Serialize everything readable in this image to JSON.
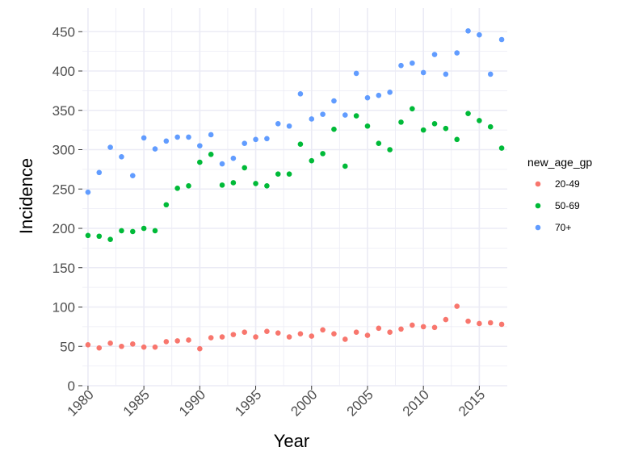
{
  "chart_data": {
    "type": "scatter",
    "title": "",
    "xlabel": "Year",
    "ylabel": "Incidence",
    "xlim": [
      1979.5,
      2017.5
    ],
    "ylim": [
      0,
      480
    ],
    "xticks": [
      "1980",
      "1985",
      "1990",
      "1995",
      "2000",
      "2005",
      "2010",
      "2015"
    ],
    "yticks": [
      "0",
      "50",
      "100",
      "150",
      "200",
      "250",
      "300",
      "350",
      "400",
      "450"
    ],
    "grid": true,
    "legend": {
      "title": "new_age_gp",
      "position": "right"
    },
    "series": [
      {
        "name": "20-49",
        "color": "#f8766d",
        "x": [
          1980,
          1981,
          1982,
          1983,
          1984,
          1985,
          1986,
          1987,
          1988,
          1989,
          1990,
          1991,
          1992,
          1993,
          1994,
          1995,
          1996,
          1997,
          1998,
          1999,
          2000,
          2001,
          2002,
          2003,
          2004,
          2005,
          2006,
          2007,
          2008,
          2009,
          2010,
          2011,
          2012,
          2013,
          2014,
          2015,
          2016,
          2017
        ],
        "y": [
          52,
          48,
          54,
          50,
          53,
          49,
          49,
          56,
          57,
          58,
          47,
          61,
          62,
          65,
          68,
          62,
          69,
          67,
          62,
          66,
          63,
          71,
          66,
          59,
          68,
          64,
          73,
          68,
          72,
          77,
          75,
          74,
          84,
          101,
          82,
          79,
          80,
          78
        ]
      },
      {
        "name": "50-69",
        "color": "#00ba38",
        "x": [
          1980,
          1981,
          1982,
          1983,
          1984,
          1985,
          1986,
          1987,
          1988,
          1989,
          1990,
          1991,
          1992,
          1993,
          1994,
          1995,
          1996,
          1997,
          1998,
          1999,
          2000,
          2001,
          2002,
          2003,
          2004,
          2005,
          2006,
          2007,
          2008,
          2009,
          2010,
          2011,
          2012,
          2013,
          2014,
          2015,
          2016,
          2017
        ],
        "y": [
          191,
          190,
          186,
          197,
          196,
          200,
          197,
          230,
          251,
          254,
          284,
          294,
          255,
          258,
          277,
          257,
          254,
          269,
          269,
          307,
          286,
          295,
          326,
          279,
          343,
          330,
          308,
          300,
          335,
          352,
          325,
          333,
          327,
          313,
          346,
          337,
          329,
          302
        ]
      },
      {
        "name": "70+",
        "color": "#619cff",
        "x": [
          1980,
          1981,
          1982,
          1983,
          1984,
          1985,
          1986,
          1987,
          1988,
          1989,
          1990,
          1991,
          1992,
          1993,
          1994,
          1995,
          1996,
          1997,
          1998,
          1999,
          2000,
          2001,
          2002,
          2003,
          2004,
          2005,
          2006,
          2007,
          2008,
          2009,
          2010,
          2011,
          2012,
          2013,
          2014,
          2015,
          2016,
          2017
        ],
        "y": [
          246,
          271,
          303,
          291,
          267,
          315,
          301,
          311,
          316,
          316,
          305,
          319,
          282,
          289,
          308,
          313,
          314,
          333,
          330,
          371,
          339,
          345,
          362,
          344,
          397,
          366,
          369,
          373,
          407,
          410,
          398,
          421,
          396,
          423,
          451,
          446,
          396,
          440
        ]
      }
    ]
  }
}
